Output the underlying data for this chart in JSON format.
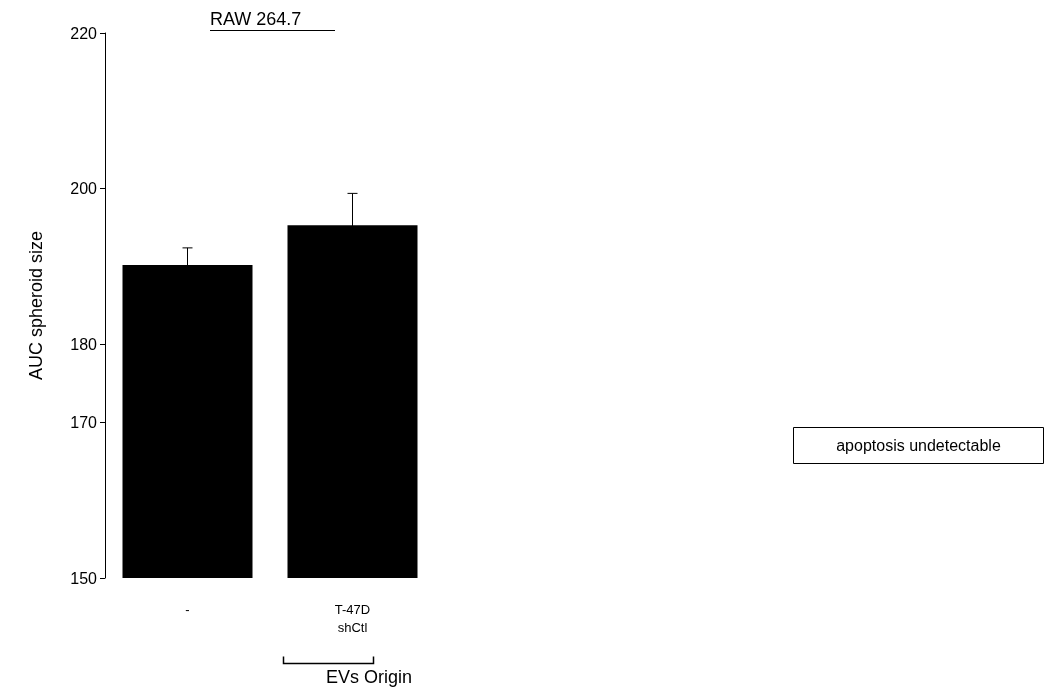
{
  "chart_data": {
    "type": "bar",
    "title": "RAW 264.7",
    "ylabel": "AUC spheroid size",
    "xlabel": "EVs Origin",
    "categories": [
      "-",
      "T-47D\nshCtl"
    ],
    "values": [
      190.2,
      195.3
    ],
    "errors": [
      2.2,
      4.1
    ],
    "color": "#000000",
    "ylim": [
      150,
      220
    ],
    "yticks": [
      150,
      170,
      180,
      200,
      220
    ],
    "grid": false,
    "annotations": [
      "apoptosis undetectable"
    ]
  }
}
